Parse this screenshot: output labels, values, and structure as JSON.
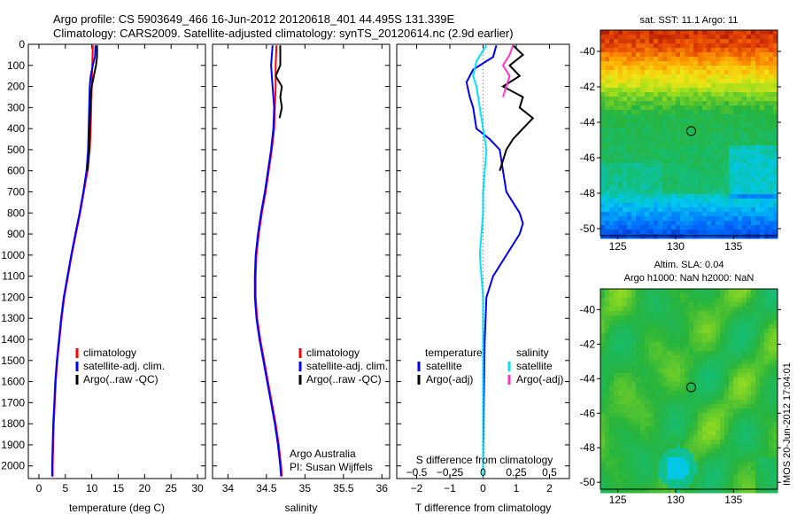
{
  "header": {
    "line1": "Argo profile: CS 5903649_466 16-Jun-2012 20120618_401 44.495S 131.339E",
    "line2": "Climatology: CARS2009. Satellite-adjusted climatology: synTS_20120614.nc (2.9d earlier)"
  },
  "side_stamp": "IMOS 20-Jun-2012 17:04:01",
  "colors": {
    "climatology": "#ff0000",
    "satellite": "#0000ff",
    "argo": "#000000",
    "sal_satellite": "#00e5ff",
    "sal_argo": "#ff33cc",
    "zero_ref": "#00aa00"
  },
  "chart_data": [
    {
      "type": "line",
      "panel": "temperature",
      "xlabel": "temperature (deg C)",
      "ylabel": "",
      "xlim": [
        -2,
        31.5
      ],
      "ylim": [
        2060,
        0
      ],
      "x_ticks": [
        0,
        5,
        10,
        15,
        20,
        25,
        30
      ],
      "x_tick_labels": [
        "0",
        "5",
        "10",
        "15",
        "20",
        "25",
        "30"
      ],
      "y_ticks": [
        0,
        100,
        200,
        300,
        400,
        500,
        600,
        700,
        800,
        900,
        1000,
        1100,
        1200,
        1300,
        1400,
        1500,
        1600,
        1700,
        1800,
        1900,
        2000
      ],
      "y_tick_labels": [
        "0",
        "100",
        "200",
        "300",
        "400",
        "500",
        "600",
        "700",
        "800",
        "900",
        "1000",
        "1100",
        "1200",
        "1300",
        "1400",
        "1500",
        "1600",
        "1700",
        "1800",
        "1900",
        "2000"
      ],
      "legend": {
        "placement": "center-left",
        "entries": [
          "climatology",
          "satellite-adj. clim.",
          "Argo(..raw -QC)"
        ]
      },
      "series": [
        {
          "name": "climatology",
          "color": "#ff0000",
          "points": [
            [
              10.2,
              5
            ],
            [
              10.1,
              100
            ],
            [
              10.0,
              200
            ],
            [
              9.9,
              300
            ],
            [
              9.8,
              400
            ],
            [
              9.6,
              500
            ],
            [
              9.2,
              600
            ],
            [
              8.5,
              700
            ],
            [
              7.8,
              800
            ],
            [
              7.0,
              900
            ],
            [
              6.2,
              1000
            ],
            [
              5.5,
              1100
            ],
            [
              4.8,
              1200
            ],
            [
              4.3,
              1300
            ],
            [
              3.9,
              1400
            ],
            [
              3.5,
              1500
            ],
            [
              3.2,
              1600
            ],
            [
              3.0,
              1700
            ],
            [
              2.8,
              1800
            ],
            [
              2.7,
              1900
            ],
            [
              2.6,
              2000
            ],
            [
              2.6,
              2050
            ]
          ]
        },
        {
          "name": "satellite-adj. clim.",
          "color": "#0000ff",
          "points": [
            [
              10.7,
              5
            ],
            [
              10.6,
              60
            ],
            [
              10.2,
              100
            ],
            [
              9.8,
              150
            ],
            [
              9.6,
              200
            ],
            [
              9.5,
              300
            ],
            [
              9.4,
              400
            ],
            [
              9.3,
              500
            ],
            [
              9.0,
              600
            ],
            [
              8.4,
              700
            ],
            [
              7.7,
              800
            ],
            [
              6.9,
              900
            ],
            [
              6.1,
              1000
            ],
            [
              5.4,
              1100
            ],
            [
              4.7,
              1200
            ],
            [
              4.2,
              1300
            ],
            [
              3.8,
              1400
            ],
            [
              3.4,
              1500
            ],
            [
              3.1,
              1600
            ],
            [
              2.9,
              1700
            ],
            [
              2.7,
              1800
            ],
            [
              2.6,
              1900
            ],
            [
              2.5,
              2000
            ],
            [
              2.5,
              2050
            ]
          ]
        },
        {
          "name": "Argo(..raw -QC)",
          "color": "#000000",
          "points": [
            [
              11.0,
              5
            ],
            [
              11.0,
              60
            ],
            [
              10.8,
              100
            ],
            [
              10.4,
              150
            ],
            [
              10.0,
              200
            ],
            [
              9.8,
              250
            ],
            [
              9.7,
              300
            ],
            [
              9.6,
              400
            ],
            [
              9.5,
              500
            ],
            [
              9.2,
              600
            ]
          ]
        }
      ]
    },
    {
      "type": "line",
      "panel": "salinity",
      "xlabel": "salinity",
      "ylabel": "",
      "xlim": [
        33.8,
        36.1
      ],
      "ylim": [
        2060,
        0
      ],
      "x_ticks": [
        34,
        34.5,
        35,
        35.5,
        36
      ],
      "x_tick_labels": [
        "34",
        "34.5",
        "35",
        "35.5",
        "36"
      ],
      "legend": {
        "placement": "center-right",
        "entries": [
          "climatology",
          "satellite-adj. clim.",
          "Argo(..raw -QC)"
        ]
      },
      "annotation": {
        "line1": "Argo Australia",
        "line2": "PI: Susan Wijffels"
      },
      "series": [
        {
          "name": "climatology",
          "color": "#ff0000",
          "points": [
            [
              34.63,
              5
            ],
            [
              34.62,
              100
            ],
            [
              34.62,
              200
            ],
            [
              34.61,
              300
            ],
            [
              34.6,
              400
            ],
            [
              34.57,
              500
            ],
            [
              34.53,
              600
            ],
            [
              34.49,
              700
            ],
            [
              34.44,
              800
            ],
            [
              34.4,
              900
            ],
            [
              34.37,
              1000
            ],
            [
              34.36,
              1100
            ],
            [
              34.36,
              1200
            ],
            [
              34.38,
              1300
            ],
            [
              34.42,
              1400
            ],
            [
              34.47,
              1500
            ],
            [
              34.52,
              1600
            ],
            [
              34.57,
              1700
            ],
            [
              34.62,
              1800
            ],
            [
              34.66,
              1900
            ],
            [
              34.69,
              2000
            ],
            [
              34.7,
              2050
            ]
          ]
        },
        {
          "name": "satellite-adj. clim.",
          "color": "#0000ff",
          "points": [
            [
              34.58,
              5
            ],
            [
              34.57,
              50
            ],
            [
              34.56,
              100
            ],
            [
              34.58,
              200
            ],
            [
              34.6,
              300
            ],
            [
              34.59,
              400
            ],
            [
              34.56,
              500
            ],
            [
              34.52,
              600
            ],
            [
              34.48,
              700
            ],
            [
              34.43,
              800
            ],
            [
              34.39,
              900
            ],
            [
              34.36,
              1000
            ],
            [
              34.35,
              1100
            ],
            [
              34.35,
              1200
            ],
            [
              34.37,
              1300
            ],
            [
              34.41,
              1400
            ],
            [
              34.46,
              1500
            ],
            [
              34.51,
              1600
            ],
            [
              34.56,
              1700
            ],
            [
              34.61,
              1800
            ],
            [
              34.65,
              1900
            ],
            [
              34.68,
              2000
            ],
            [
              34.69,
              2050
            ]
          ]
        },
        {
          "name": "Argo(..raw -QC)",
          "color": "#000000",
          "points": [
            [
              34.68,
              5
            ],
            [
              34.68,
              100
            ],
            [
              34.62,
              150
            ],
            [
              34.7,
              200
            ],
            [
              34.68,
              250
            ],
            [
              34.7,
              300
            ],
            [
              34.67,
              350
            ]
          ]
        }
      ]
    },
    {
      "type": "line",
      "panel": "difference",
      "xlabel": "T difference from climatology",
      "top_label": "S difference from climatology",
      "xlim": [
        -2.6,
        2.6
      ],
      "ylim": [
        2060,
        0
      ],
      "x_ticks": [
        -2,
        -1,
        0,
        1,
        2
      ],
      "x_tick_labels": [
        "−2",
        "−1",
        "0",
        "1",
        "2"
      ],
      "top_ticks": [
        -0.5,
        -0.25,
        0,
        0.25,
        0.5
      ],
      "top_tick_labels": [
        "−0.5",
        "−0.25",
        "0",
        "0.25",
        "0.5"
      ],
      "legend_left": {
        "title": "temperature",
        "entries": [
          "satellite",
          "Argo(-adj)"
        ]
      },
      "legend_right": {
        "title": "salinity",
        "entries": [
          "satellite",
          "Argo(-adj)"
        ]
      },
      "series": [
        {
          "name": "satellite",
          "group": "temperature",
          "color": "#0000ff",
          "points": [
            [
              0.4,
              5
            ],
            [
              0.3,
              60
            ],
            [
              0.1,
              80
            ],
            [
              -0.3,
              120
            ],
            [
              -0.5,
              180
            ],
            [
              -0.4,
              250
            ],
            [
              -0.3,
              300
            ],
            [
              -0.2,
              400
            ],
            [
              0.2,
              450
            ],
            [
              0.5,
              500
            ],
            [
              0.6,
              600
            ],
            [
              0.7,
              700
            ],
            [
              1.1,
              800
            ],
            [
              1.2,
              850
            ],
            [
              1.1,
              900
            ],
            [
              0.7,
              1000
            ],
            [
              0.3,
              1100
            ],
            [
              0.1,
              1200
            ],
            [
              0.05,
              1400
            ],
            [
              0.02,
              1700
            ],
            [
              0,
              2000
            ],
            [
              0,
              2050
            ]
          ]
        },
        {
          "name": "Argo(-adj)",
          "group": "temperature",
          "color": "#000000",
          "points": [
            [
              0.9,
              5
            ],
            [
              1.2,
              50
            ],
            [
              0.8,
              100
            ],
            [
              1.1,
              150
            ],
            [
              0.6,
              200
            ],
            [
              1.2,
              250
            ],
            [
              1.1,
              300
            ],
            [
              1.5,
              350
            ],
            [
              1.2,
              400
            ],
            [
              0.9,
              450
            ],
            [
              0.7,
              500
            ],
            [
              0.5,
              600
            ]
          ]
        },
        {
          "name": "satellite",
          "group": "salinity",
          "color": "#00e5ff",
          "points": [
            [
              0.1,
              5
            ],
            [
              -0.2,
              80
            ],
            [
              -0.3,
              150
            ],
            [
              -0.2,
              200
            ],
            [
              -0.1,
              300
            ],
            [
              0,
              400
            ],
            [
              0.1,
              500
            ],
            [
              0.05,
              600
            ],
            [
              0,
              700
            ],
            [
              0,
              800
            ],
            [
              -0.05,
              900
            ],
            [
              -0.1,
              1000
            ],
            [
              -0.05,
              1100
            ],
            [
              0,
              1200
            ],
            [
              0,
              1500
            ],
            [
              0,
              2000
            ],
            [
              0,
              2050
            ]
          ]
        },
        {
          "name": "Argo(-adj)",
          "group": "salinity",
          "color": "#ff33cc",
          "points": [
            [
              0.9,
              5
            ],
            [
              0.8,
              50
            ],
            [
              0.6,
              100
            ],
            [
              0.8,
              150
            ],
            [
              0.7,
              200
            ],
            [
              0.6,
              250
            ]
          ]
        }
      ]
    },
    {
      "type": "heatmap",
      "panel": "sst_map",
      "title": "sat. SST: 11.1 Argo: 11",
      "xlim": [
        123.5,
        138.8
      ],
      "ylim": [
        -50.4,
        -38.8
      ],
      "x_ticks": [
        125,
        130,
        135
      ],
      "x_tick_labels": [
        "125",
        "130",
        "135"
      ],
      "y_ticks": [
        -40,
        -42,
        -44,
        -46,
        -48,
        -50
      ],
      "y_tick_labels": [
        "-40",
        "-42",
        "-44",
        "-46",
        "-48",
        "-50"
      ],
      "marker": {
        "lon": 131.339,
        "lat": -44.495
      }
    },
    {
      "type": "heatmap",
      "panel": "sla_map",
      "title": "Altim. SLA: 0.04",
      "subtitle": "Argo h1000: NaN h2000: NaN",
      "xlim": [
        123.5,
        138.8
      ],
      "ylim": [
        -50.4,
        -38.8
      ],
      "x_ticks": [
        125,
        130,
        135
      ],
      "x_tick_labels": [
        "125",
        "130",
        "135"
      ],
      "y_ticks": [
        -40,
        -42,
        -44,
        -46,
        -48,
        -50
      ],
      "y_tick_labels": [
        "-40",
        "-42",
        "-44",
        "-46",
        "-48",
        "-50"
      ],
      "marker": {
        "lon": 131.339,
        "lat": -44.495
      }
    }
  ]
}
